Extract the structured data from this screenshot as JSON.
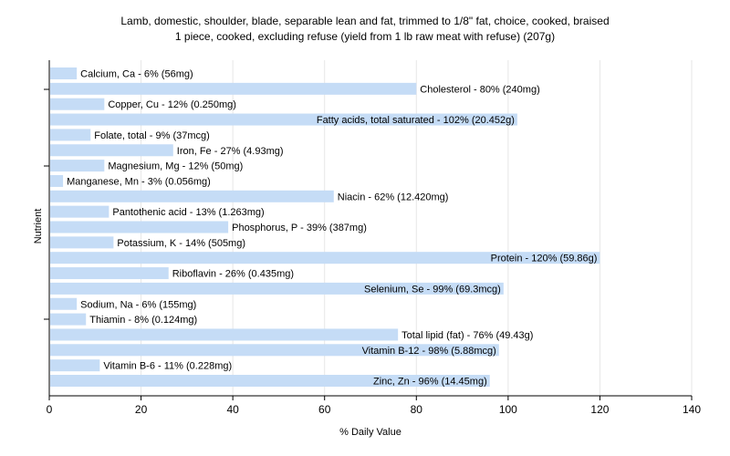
{
  "chart_data": {
    "type": "bar",
    "orientation": "horizontal",
    "title": "Lamb, domestic, shoulder, blade, separable lean and fat, trimmed to 1/8\" fat, choice, cooked, braised",
    "subtitle": "1 piece, cooked, excluding refuse (yield from 1 lb raw meat with refuse) (207g)",
    "xlabel": "% Daily Value",
    "ylabel": "Nutrient",
    "xlim": [
      0,
      140
    ],
    "xticks": [
      0,
      20,
      40,
      60,
      80,
      100,
      120,
      140
    ],
    "grid": true,
    "bar_color": "#c5dcf6",
    "categories": [
      "Calcium, Ca",
      "Cholesterol",
      "Copper, Cu",
      "Fatty acids, total saturated",
      "Folate, total",
      "Iron, Fe",
      "Magnesium, Mg",
      "Manganese, Mn",
      "Niacin",
      "Pantothenic acid",
      "Phosphorus, P",
      "Potassium, K",
      "Protein",
      "Riboflavin",
      "Selenium, Se",
      "Sodium, Na",
      "Thiamin",
      "Total lipid (fat)",
      "Vitamin B-12",
      "Vitamin B-6",
      "Zinc, Zn"
    ],
    "values": [
      6,
      80,
      12,
      102,
      9,
      27,
      12,
      3,
      62,
      13,
      39,
      14,
      120,
      26,
      99,
      6,
      8,
      76,
      98,
      11,
      96
    ],
    "labels": [
      "Calcium, Ca - 6% (56mg)",
      "Cholesterol - 80% (240mg)",
      "Copper, Cu - 12% (0.250mg)",
      "Fatty acids, total saturated - 102% (20.452g)",
      "Folate, total - 9% (37mcg)",
      "Iron, Fe - 27% (4.93mg)",
      "Magnesium, Mg - 12% (50mg)",
      "Manganese, Mn - 3% (0.056mg)",
      "Niacin - 62% (12.420mg)",
      "Pantothenic acid - 13% (1.263mg)",
      "Phosphorus, P - 39% (387mg)",
      "Potassium, K - 14% (505mg)",
      "Protein - 120% (59.86g)",
      "Riboflavin - 26% (0.435mg)",
      "Selenium, Se - 99% (69.3mcg)",
      "Sodium, Na - 6% (155mg)",
      "Thiamin - 8% (0.124mg)",
      "Total lipid (fat) - 76% (49.43g)",
      "Vitamin B-12 - 98% (5.88mcg)",
      "Vitamin B-6 - 11% (0.228mg)",
      "Zinc, Zn - 96% (14.45mg)"
    ]
  }
}
